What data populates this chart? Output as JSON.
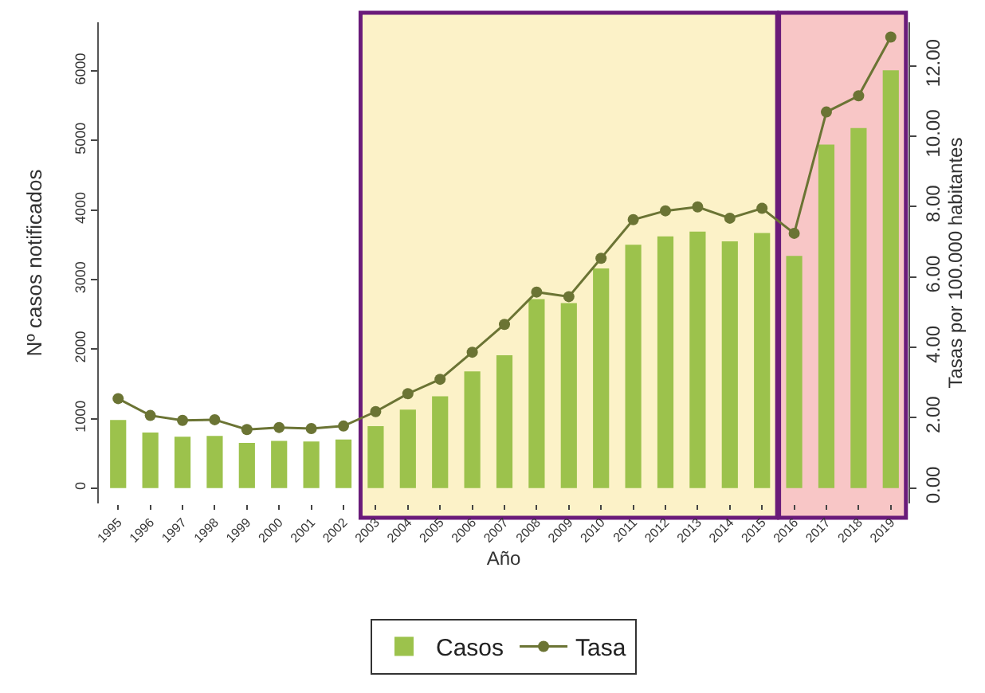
{
  "chart_data": {
    "type": "bar",
    "xlabel": "Año",
    "ylabel": "Nº casos notificados",
    "y2label": "Tasas por 100.000 habitantes",
    "categories": [
      "1995",
      "1996",
      "1997",
      "1998",
      "1999",
      "2000",
      "2001",
      "2002",
      "2003",
      "2004",
      "2005",
      "2006",
      "2007",
      "2008",
      "2009",
      "2010",
      "2011",
      "2012",
      "2013",
      "2014",
      "2015",
      "2016",
      "2017",
      "2018",
      "2019"
    ],
    "series": [
      {
        "name": "Casos",
        "color": "#9cc24c",
        "values": [
          980,
          800,
          740,
          750,
          650,
          680,
          670,
          700,
          890,
          1130,
          1320,
          1680,
          1910,
          2720,
          2660,
          3160,
          3500,
          3620,
          3690,
          3550,
          3670,
          3340,
          4940,
          5180,
          6010
        ]
      },
      {
        "name": "Tasa",
        "type": "line",
        "axis": "y2",
        "color": "#6b7434",
        "marker": "circle",
        "line_style": "solid",
        "values": [
          2.54,
          2.06,
          1.92,
          1.94,
          1.66,
          1.72,
          1.69,
          1.76,
          2.17,
          2.68,
          3.09,
          3.86,
          4.65,
          5.57,
          5.44,
          6.53,
          7.63,
          7.88,
          7.99,
          7.67,
          7.95,
          7.24,
          10.69,
          11.15,
          12.82
        ]
      }
    ],
    "ylim": [
      -220,
      6700
    ],
    "yticks": [
      0,
      1000,
      2000,
      3000,
      4000,
      5000,
      6000
    ],
    "y2lim": [
      -0.44,
      13.24
    ],
    "y2ticks": [
      {
        "value": 0,
        "label": "0.00"
      },
      {
        "value": 2,
        "label": "2.00"
      },
      {
        "value": 4,
        "label": "4.00"
      },
      {
        "value": 6,
        "label": "6.00"
      },
      {
        "value": 8,
        "label": "8.00"
      },
      {
        "value": 10,
        "label": "10.00"
      },
      {
        "value": 12,
        "label": "12.00"
      }
    ],
    "bands": [
      {
        "axis": "x",
        "from": "2003",
        "to": "2015",
        "color": "#fcf2c8"
      },
      {
        "axis": "x",
        "from": "2016",
        "to": "2019",
        "color": "#f8c6c6"
      }
    ],
    "legend": "bottom"
  }
}
